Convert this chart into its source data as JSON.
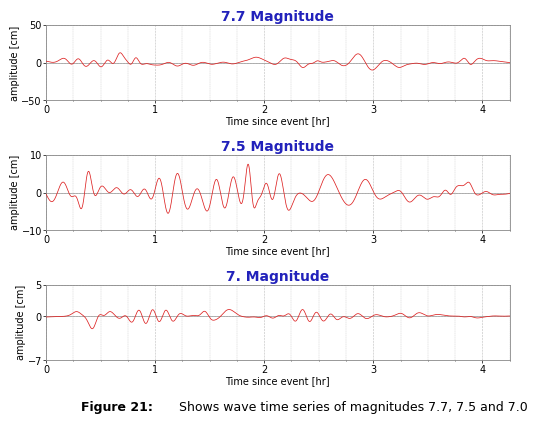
{
  "title1": "7.7 Magnitude",
  "title2": "7.5 Magnitude",
  "title3": "7. Magnitude",
  "xlabel": "Time since event [hr]",
  "ylabel": "amplitude [cm]",
  "xlim": [
    0.0,
    4.25
  ],
  "xticks": [
    0.0,
    1.0,
    2.0,
    3.0,
    4.0
  ],
  "ylim1": [
    -50,
    50
  ],
  "yticks1": [
    -50,
    0,
    50
  ],
  "ylim2": [
    -10,
    10
  ],
  "yticks2": [
    -10,
    0,
    10
  ],
  "ylim3": [
    -7,
    5
  ],
  "yticks3": [
    -7,
    0,
    5
  ],
  "line_color": "#dd2222",
  "title_color": "#2222bb",
  "grid_color": "#bbbbbb",
  "bg_color": "#ffffff",
  "caption_bold": "Figure 21:",
  "caption_normal": " Shows wave time series of magnitudes 7.7, 7.5 and 7.0",
  "title_fontsize": 10,
  "axis_label_fontsize": 7,
  "tick_fontsize": 7,
  "caption_fontsize": 9
}
